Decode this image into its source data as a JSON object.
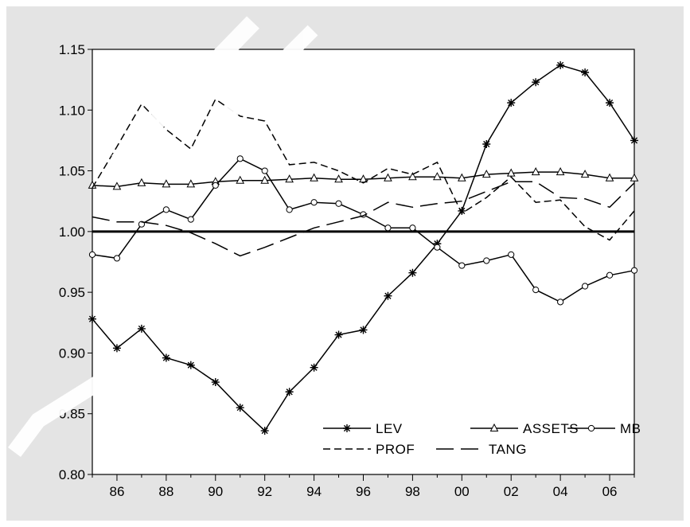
{
  "colors": {
    "background": "#e4e4e4",
    "plot_area": "#ffffff",
    "line": "#000000",
    "watermark": "#ffffff"
  },
  "chart_data": {
    "type": "line",
    "x": [
      "85",
      "86",
      "87",
      "88",
      "89",
      "90",
      "91",
      "92",
      "93",
      "94",
      "95",
      "96",
      "97",
      "98",
      "99",
      "00",
      "01",
      "02",
      "03",
      "04",
      "05",
      "06",
      "07"
    ],
    "xtick_labels": [
      "86",
      "88",
      "90",
      "92",
      "94",
      "96",
      "98",
      "00",
      "02",
      "04",
      "06"
    ],
    "ytick_labels": [
      "0.80",
      "0.85",
      "0.90",
      "0.95",
      "1.00",
      "1.05",
      "1.10",
      "1.15"
    ],
    "ylim": [
      0.8,
      1.15
    ],
    "reference_line": 1.0,
    "grid": false,
    "legend_position": "bottom-right",
    "series": [
      {
        "name": "LEV",
        "style": "solid",
        "marker": "asterisk",
        "values": [
          0.928,
          0.904,
          0.92,
          0.896,
          0.89,
          0.876,
          0.855,
          0.836,
          0.868,
          0.888,
          0.915,
          0.919,
          0.947,
          0.966,
          0.99,
          1.017,
          1.072,
          1.106,
          1.123,
          1.137,
          1.131,
          1.106,
          1.075
        ]
      },
      {
        "name": "ASSETS",
        "style": "solid",
        "marker": "triangle",
        "values": [
          1.038,
          1.037,
          1.04,
          1.039,
          1.039,
          1.041,
          1.042,
          1.042,
          1.043,
          1.044,
          1.043,
          1.043,
          1.044,
          1.045,
          1.045,
          1.044,
          1.047,
          1.048,
          1.049,
          1.049,
          1.047,
          1.044,
          1.044
        ]
      },
      {
        "name": "MB",
        "style": "solid",
        "marker": "circle",
        "values": [
          0.981,
          0.978,
          1.006,
          1.018,
          1.01,
          1.038,
          1.06,
          1.05,
          1.018,
          1.024,
          1.023,
          1.014,
          1.003,
          1.003,
          0.987,
          0.972,
          0.976,
          0.981,
          0.952,
          0.942,
          0.955,
          0.964,
          0.968
        ]
      },
      {
        "name": "PROF",
        "style": "short-dash",
        "marker": "none",
        "values": [
          1.036,
          1.07,
          1.105,
          1.084,
          1.068,
          1.109,
          1.095,
          1.091,
          1.055,
          1.057,
          1.05,
          1.04,
          1.052,
          1.047,
          1.057,
          1.015,
          1.028,
          1.045,
          1.024,
          1.026,
          1.004,
          0.993,
          1.017
        ]
      },
      {
        "name": "TANG",
        "style": "long-dash",
        "marker": "none",
        "values": [
          1.012,
          1.008,
          1.008,
          1.005,
          0.999,
          0.99,
          0.98,
          0.987,
          0.995,
          1.003,
          1.008,
          1.013,
          1.024,
          1.02,
          1.023,
          1.025,
          1.033,
          1.041,
          1.041,
          1.028,
          1.027,
          1.02,
          1.04
        ]
      }
    ]
  }
}
